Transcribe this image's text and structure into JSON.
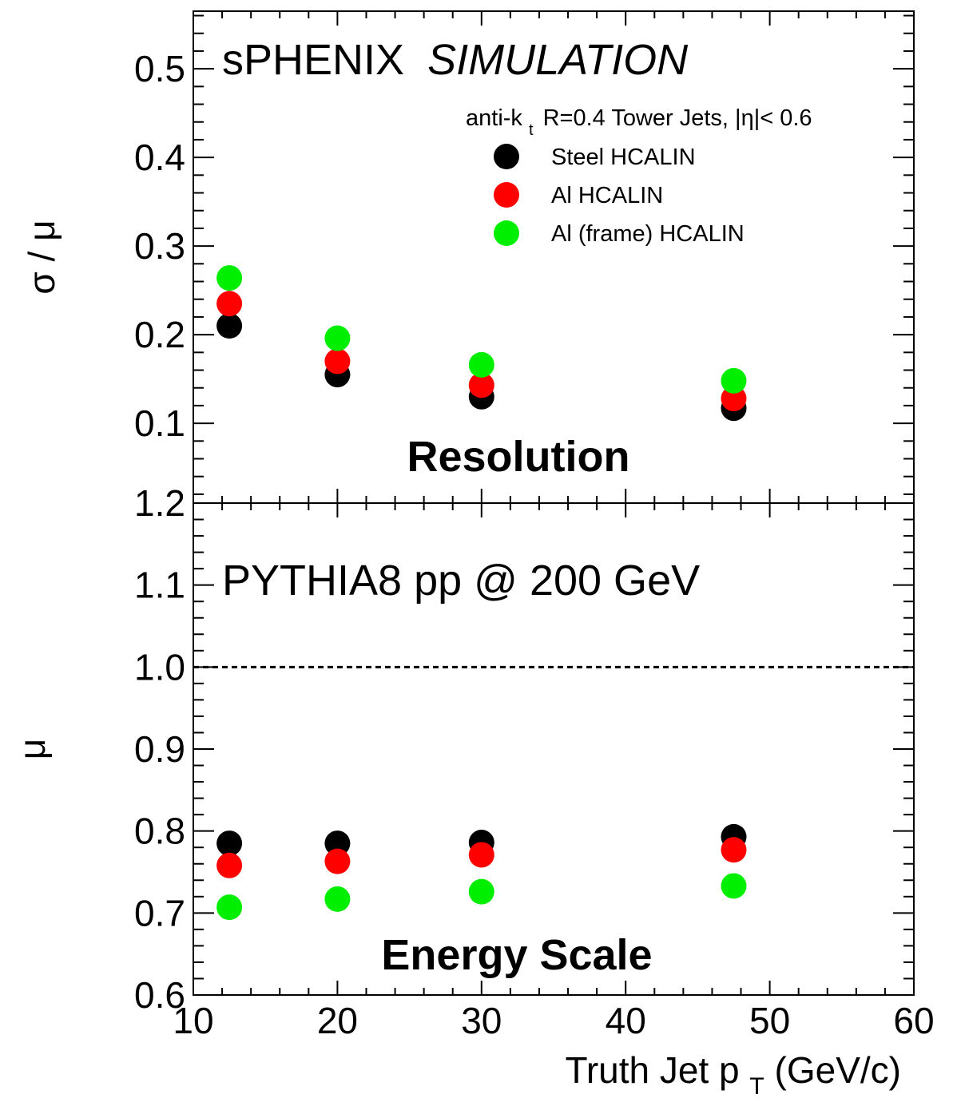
{
  "chart_data": [
    {
      "type": "scatter",
      "panel": "top",
      "header": "sPHENIX",
      "header_italic": "SIMULATION",
      "ylabel": "σ / μ",
      "big_label": "Resolution",
      "legend_header": {
        "prefix": "anti-k",
        "sub": "t",
        "suffix": " R=0.4 Tower Jets, |η|< 0.6"
      },
      "legend_placement": "top-right",
      "xlim": [
        10,
        60
      ],
      "ylim": [
        0.01,
        0.565
      ],
      "yticks": [
        "0.1",
        "0.2",
        "0.3",
        "0.4",
        "0.5"
      ],
      "x": [
        12.5,
        20,
        30,
        47.5
      ],
      "series": [
        {
          "name": "Steel HCALIN",
          "color": "#000000",
          "values": [
            0.21,
            0.155,
            0.13,
            0.117
          ]
        },
        {
          "name": "Al HCALIN",
          "color": "#ff0000",
          "values": [
            0.235,
            0.17,
            0.143,
            0.128
          ]
        },
        {
          "name": "Al (frame) HCALIN",
          "color": "#00ee00",
          "values": [
            0.264,
            0.196,
            0.166,
            0.148
          ]
        }
      ]
    },
    {
      "type": "scatter",
      "panel": "bottom",
      "header": "PYTHIA8 pp @ 200 GeV",
      "ylabel": "μ",
      "big_label": "Energy Scale",
      "xlabel": {
        "main": "Truth Jet p",
        "sub": "T",
        "suffix": " (GeV/c)"
      },
      "xlim": [
        10,
        60
      ],
      "ylim": [
        0.6,
        1.2
      ],
      "xticks": [
        "10",
        "20",
        "30",
        "40",
        "50",
        "60"
      ],
      "yticks": [
        "0.6",
        "0.7",
        "0.8",
        "0.9",
        "1.0",
        "1.1",
        "1.2"
      ],
      "reference_line": 1.0,
      "x": [
        12.5,
        20,
        30,
        47.5
      ],
      "series": [
        {
          "name": "Steel HCALIN",
          "color": "#000000",
          "values": [
            0.785,
            0.785,
            0.786,
            0.793
          ]
        },
        {
          "name": "Al HCALIN",
          "color": "#ff0000",
          "values": [
            0.758,
            0.763,
            0.771,
            0.777
          ]
        },
        {
          "name": "Al (frame) HCALIN",
          "color": "#00ee00",
          "values": [
            0.707,
            0.717,
            0.726,
            0.733
          ]
        }
      ]
    }
  ]
}
